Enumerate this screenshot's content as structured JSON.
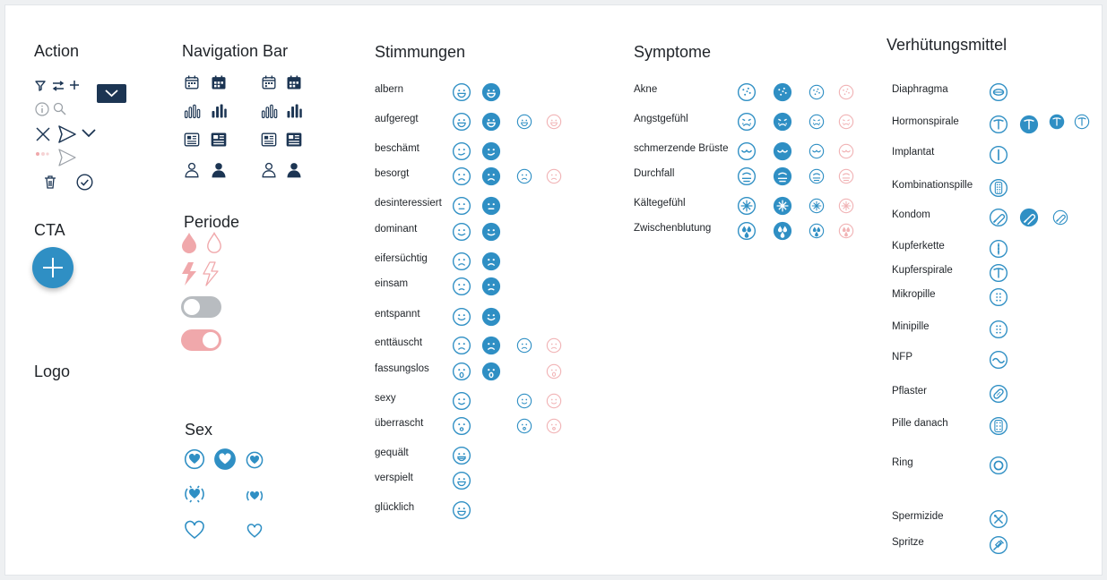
{
  "sections": {
    "action": "Action",
    "navigation": "Navigation Bar",
    "cta": "CTA",
    "periode": "Periode",
    "logo": "Logo",
    "sex": "Sex",
    "stimmungen": "Stimmungen",
    "symptome": "Symptome",
    "verhuetung": "Verhütungsmittel"
  },
  "colors": {
    "primary": "#2f8fc4",
    "navy": "#1c3553",
    "pink": "#f0a8ab",
    "muted_pink": "#f1b3b5",
    "grey_toggle": "#b8bcc0"
  },
  "action_icons": [
    "filter-icon",
    "sort-icon",
    "add-icon",
    "chevron-down-icon",
    "info-icon",
    "search-icon",
    "close-icon",
    "send-icon",
    "trash-icon",
    "check-circle-icon"
  ],
  "navigation_icons": [
    "calendar-icon",
    "chart-icon",
    "news-icon",
    "profile-icon"
  ],
  "periode_icons": [
    "drop-icon",
    "pain-flash-icon",
    "toggle-off",
    "toggle-on"
  ],
  "moods": [
    {
      "label": "albern",
      "variants": [
        1,
        1,
        0,
        0
      ]
    },
    {
      "label": "aufgeregt",
      "variants": [
        1,
        1,
        1,
        1
      ]
    },
    {
      "label": "beschämt",
      "variants": [
        1,
        1,
        0,
        0
      ]
    },
    {
      "label": "besorgt",
      "variants": [
        1,
        1,
        1,
        1
      ]
    },
    {
      "label": "desinteressiert",
      "variants": [
        1,
        1,
        0,
        0
      ]
    },
    {
      "label": "dominant",
      "variants": [
        1,
        1,
        0,
        0
      ]
    },
    {
      "label": "eifersüchtig",
      "variants": [
        1,
        1,
        0,
        0
      ]
    },
    {
      "label": "einsam",
      "variants": [
        1,
        1,
        0,
        0
      ]
    },
    {
      "label": "entspannt",
      "variants": [
        1,
        1,
        0,
        0
      ]
    },
    {
      "label": "enttäuscht",
      "variants": [
        1,
        1,
        1,
        1
      ]
    },
    {
      "label": "fassungslos",
      "variants": [
        1,
        1,
        0,
        1
      ]
    },
    {
      "label": "sexy",
      "variants": [
        1,
        0,
        1,
        1
      ]
    },
    {
      "label": "überrascht",
      "variants": [
        1,
        0,
        1,
        1
      ]
    },
    {
      "label": "gequält",
      "variants": [
        1,
        0,
        0,
        0
      ]
    },
    {
      "label": "verspielt",
      "variants": [
        1,
        0,
        0,
        0
      ]
    },
    {
      "label": "glücklich",
      "variants": [
        1,
        0,
        0,
        0
      ]
    }
  ],
  "symptoms": [
    {
      "label": "Akne"
    },
    {
      "label": "Angstgefühl"
    },
    {
      "label": "schmerzende Brüste"
    },
    {
      "label": "Durchfall"
    },
    {
      "label": "Kältegefühl"
    },
    {
      "label": "Zwischenblutung"
    }
  ],
  "contraceptives": [
    {
      "label": "Diaphragma",
      "icon": "diaphragm-icon"
    },
    {
      "label": "Hormonspirale",
      "icon": "iud-icon"
    },
    {
      "label": "Implantat",
      "icon": "implant-icon"
    },
    {
      "label": "Kombinationspille",
      "icon": "pill-pack-icon"
    },
    {
      "label": "Kondom",
      "icon": "condom-icon"
    },
    {
      "label": "Kupferkette",
      "icon": "copper-chain-icon"
    },
    {
      "label": "Kupferspirale",
      "icon": "copper-iud-icon"
    },
    {
      "label": "Mikropille",
      "icon": "micropill-icon"
    },
    {
      "label": "Minipille",
      "icon": "minipill-icon"
    },
    {
      "label": "NFP",
      "icon": "nfp-wave-icon"
    },
    {
      "label": "Pflaster",
      "icon": "patch-icon"
    },
    {
      "label": "Pille danach",
      "icon": "morning-after-pill-icon"
    },
    {
      "label": "Ring",
      "icon": "ring-icon"
    },
    {
      "label": "Spermizide",
      "icon": "spermicide-icon"
    },
    {
      "label": "Spritze",
      "icon": "injection-icon"
    }
  ]
}
